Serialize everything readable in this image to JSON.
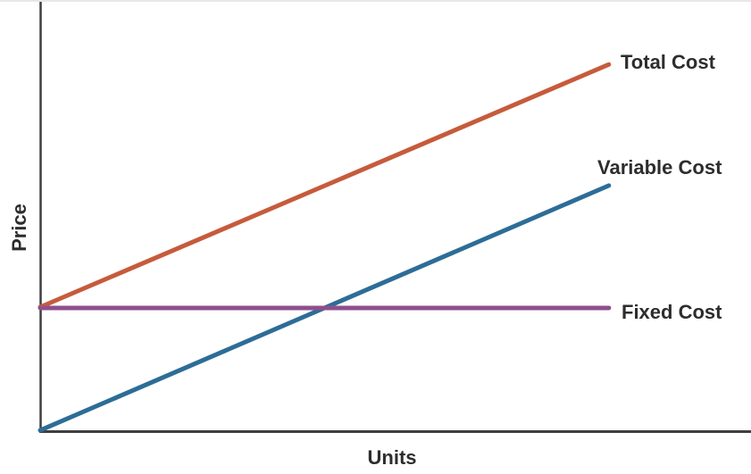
{
  "chart_data": {
    "type": "line",
    "title": "",
    "xlabel": "Units",
    "ylabel": "Price",
    "x_ticks": [],
    "y_ticks": [],
    "grid": false,
    "legend_position": "inline labels at right end of each line",
    "axes_numeric": false,
    "colors": {
      "axis": "#3f3f3f",
      "text": "#2d2d2d",
      "background": "#ffffff",
      "top_rule": "#e7e7e7"
    },
    "series": [
      {
        "name": "Total Cost",
        "color": "#c65b3c",
        "points_frac": [
          [
            0,
            0.289
          ],
          [
            0.8,
            0.854
          ]
        ],
        "description": "Starts on the y-axis at the fixed-cost level and rises linearly to the upper right"
      },
      {
        "name": "Variable Cost",
        "color": "#2d6d96",
        "points_frac": [
          [
            0,
            0.002
          ],
          [
            0.8,
            0.572
          ]
        ],
        "description": "Starts at the origin and rises linearly, crossing the fixed-cost line mid-chart"
      },
      {
        "name": "Fixed Cost",
        "color": "#8e4f8c",
        "points_frac": [
          [
            0,
            0.287
          ],
          [
            0.8,
            0.287
          ]
        ],
        "description": "Horizontal line at a constant level above the x-axis"
      }
    ]
  }
}
